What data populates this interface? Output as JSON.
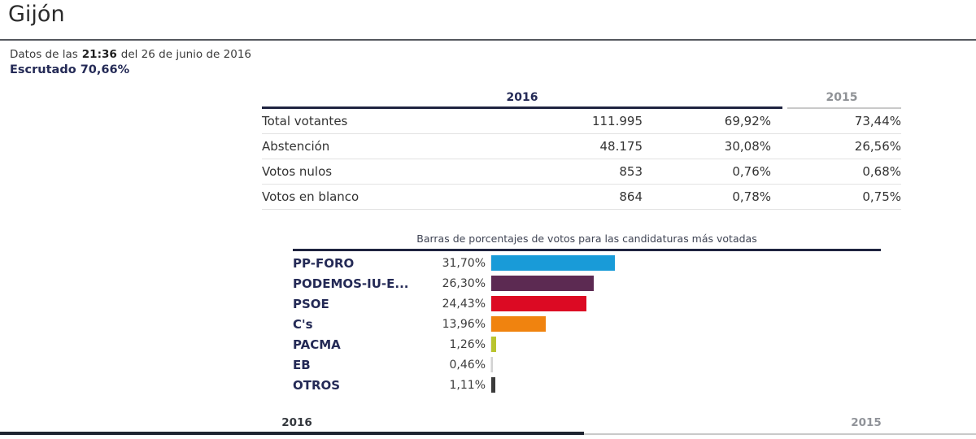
{
  "page": {
    "title": "Gijón"
  },
  "status": {
    "prefix": "Datos de las",
    "time": "21:36",
    "suffix": "del 26 de junio de 2016",
    "scrutinized": "Escrutado 70,66%"
  },
  "table": {
    "col_2016": "2016",
    "col_2015": "2015",
    "rows": [
      {
        "label": "Total votantes",
        "votes": "111.995",
        "pct_2016": "69,92%",
        "pct_2015": "73,44%"
      },
      {
        "label": "Abstención",
        "votes": "48.175",
        "pct_2016": "30,08%",
        "pct_2015": "26,56%"
      },
      {
        "label": "Votos nulos",
        "votes": "853",
        "pct_2016": "0,76%",
        "pct_2015": "0,68%"
      },
      {
        "label": "Votos en blanco",
        "votes": "864",
        "pct_2016": "0,78%",
        "pct_2015": "0,75%"
      }
    ]
  },
  "chart_data": {
    "type": "bar",
    "orientation": "horizontal",
    "title": "Barras de porcentajes de votos para las candidaturas más votadas",
    "categories": [
      "PP-FORO",
      "PODEMOS-IU-E...",
      "PSOE",
      "C's",
      "PACMA",
      "EB",
      "OTROS"
    ],
    "values": [
      31.7,
      26.3,
      24.43,
      13.96,
      1.26,
      0.46,
      1.11
    ],
    "value_labels": [
      "31,70%",
      "26,30%",
      "24,43%",
      "13,96%",
      "1,26%",
      "0,46%",
      "1,11%"
    ],
    "colors": [
      "#199bd8",
      "#5c2a52",
      "#dc0a23",
      "#f0830f",
      "#b9c42e",
      "#d2d2d2",
      "#3b3b3b"
    ],
    "xlim": [
      0,
      100
    ],
    "grid": false,
    "legend": "none"
  },
  "tabs": {
    "tab_2016": "2016",
    "tab_2015": "2015"
  },
  "colors": {
    "accent_navy": "#242a56",
    "rule_dark": "#1f2440",
    "rule_light": "#c9c9c9",
    "muted_gray": "#8f9296"
  }
}
